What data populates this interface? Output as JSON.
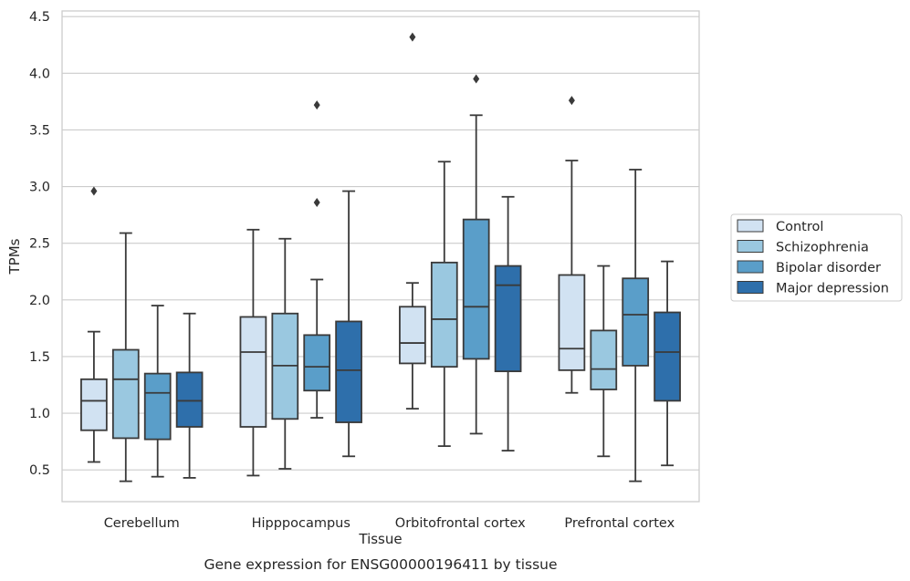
{
  "chart_data": {
    "type": "box",
    "title": "",
    "caption": "Gene expression for ENSG00000196411 by tissue",
    "xlabel": "Tissue",
    "ylabel": "TPMs",
    "ylim": [
      0.22,
      4.55
    ],
    "yticks": [
      "0.5",
      "1.0",
      "1.5",
      "2.0",
      "2.5",
      "3.0",
      "3.5",
      "4.0",
      "4.5"
    ],
    "grid": "horizontal",
    "legend_placement": "right",
    "categories": [
      "Cerebellum",
      "Hipppocampus",
      "Orbitofrontal cortex",
      "Prefrontal cortex"
    ],
    "series": [
      {
        "name": "Control",
        "color": "#d1e2f2",
        "boxes": [
          {
            "whislo": 0.57,
            "q1": 0.85,
            "med": 1.11,
            "q3": 1.3,
            "whishi": 1.72,
            "fliers": [
              2.96
            ]
          },
          {
            "whislo": 0.45,
            "q1": 0.88,
            "med": 1.54,
            "q3": 1.85,
            "whishi": 2.62,
            "fliers": []
          },
          {
            "whislo": 1.04,
            "q1": 1.44,
            "med": 1.62,
            "q3": 1.94,
            "whishi": 2.15,
            "fliers": [
              4.32
            ]
          },
          {
            "whislo": 1.18,
            "q1": 1.38,
            "med": 1.57,
            "q3": 2.22,
            "whishi": 3.23,
            "fliers": [
              3.76
            ]
          }
        ]
      },
      {
        "name": "Schizophrenia",
        "color": "#9ac8e0",
        "boxes": [
          {
            "whislo": 0.4,
            "q1": 0.78,
            "med": 1.3,
            "q3": 1.56,
            "whishi": 2.59,
            "fliers": []
          },
          {
            "whislo": 0.51,
            "q1": 0.95,
            "med": 1.42,
            "q3": 1.88,
            "whishi": 2.54,
            "fliers": []
          },
          {
            "whislo": 0.71,
            "q1": 1.41,
            "med": 1.83,
            "q3": 2.33,
            "whishi": 3.22,
            "fliers": []
          },
          {
            "whislo": 0.62,
            "q1": 1.21,
            "med": 1.39,
            "q3": 1.73,
            "whishi": 2.3,
            "fliers": []
          }
        ]
      },
      {
        "name": "Bipolar disorder",
        "color": "#5a9ec9",
        "boxes": [
          {
            "whislo": 0.44,
            "q1": 0.77,
            "med": 1.18,
            "q3": 1.35,
            "whishi": 1.95,
            "fliers": []
          },
          {
            "whislo": 0.96,
            "q1": 1.2,
            "med": 1.41,
            "q3": 1.69,
            "whishi": 2.18,
            "fliers": [
              3.72,
              2.86
            ]
          },
          {
            "whislo": 0.82,
            "q1": 1.48,
            "med": 1.94,
            "q3": 2.71,
            "whishi": 3.63,
            "fliers": [
              3.95
            ]
          },
          {
            "whislo": 0.4,
            "q1": 1.42,
            "med": 1.87,
            "q3": 2.19,
            "whishi": 3.15,
            "fliers": []
          }
        ]
      },
      {
        "name": "Major depression",
        "color": "#2e6fab",
        "boxes": [
          {
            "whislo": 0.43,
            "q1": 0.88,
            "med": 1.11,
            "q3": 1.36,
            "whishi": 1.88,
            "fliers": []
          },
          {
            "whislo": 0.62,
            "q1": 0.92,
            "med": 1.38,
            "q3": 1.81,
            "whishi": 2.96,
            "fliers": []
          },
          {
            "whislo": 0.67,
            "q1": 1.37,
            "med": 2.13,
            "q3": 2.3,
            "whishi": 2.91,
            "fliers": []
          },
          {
            "whislo": 0.54,
            "q1": 1.11,
            "med": 1.54,
            "q3": 1.89,
            "whishi": 2.34,
            "fliers": []
          }
        ]
      }
    ]
  }
}
